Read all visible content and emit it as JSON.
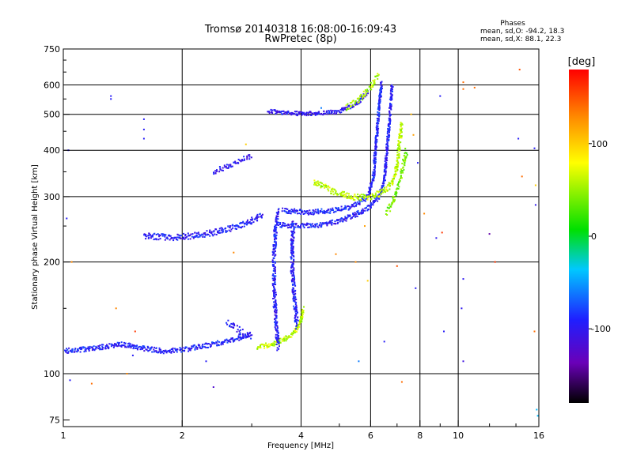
{
  "chart_data": {
    "type": "scatter",
    "title": "Tromsø 20140318 16:08:00-16:09:43",
    "subtitle": "RwPretec (8p)",
    "xlabel": "Frequency [MHz]",
    "ylabel": "Stationary phase Virtual Height [km]",
    "xscale": "log",
    "yscale": "log",
    "xlim": [
      1,
      16
    ],
    "ylim": [
      72,
      750
    ],
    "xticks": [
      {
        "value": 1,
        "label": "1"
      },
      {
        "value": 2,
        "label": "2"
      },
      {
        "value": 4,
        "label": "4"
      },
      {
        "value": 6,
        "label": "6"
      },
      {
        "value": 8,
        "label": "8"
      },
      {
        "value": 10,
        "label": "10"
      },
      {
        "value": 16,
        "label": "16"
      }
    ],
    "xgrid": [
      2,
      4,
      6,
      8,
      10
    ],
    "yticks": [
      {
        "value": 75,
        "label": "75"
      },
      {
        "value": 100,
        "label": "100"
      },
      {
        "value": 200,
        "label": "200"
      },
      {
        "value": 300,
        "label": "300"
      },
      {
        "value": 400,
        "label": "400"
      },
      {
        "value": 500,
        "label": "500"
      },
      {
        "value": 600,
        "label": "600"
      },
      {
        "value": 750,
        "label": "750"
      }
    ],
    "ygrid": [
      100,
      200,
      300,
      400,
      500,
      600
    ],
    "grid": true,
    "legend": {
      "title": "Phases",
      "lines": [
        "mean, sd,O: -94.2, 18.3",
        "mean, sd,X:  88.1, 22.3"
      ],
      "position": "top-right"
    },
    "colorbar": {
      "title": "[deg]",
      "range": [
        -180,
        180
      ],
      "ticks": [
        {
          "value": 100,
          "label": "100"
        },
        {
          "value": 0,
          "label": "0"
        },
        {
          "value": -100,
          "label": "-100"
        }
      ],
      "colors": [
        "#000000",
        "#6a00b8",
        "#1f1fff",
        "#00c8ff",
        "#00e000",
        "#ffff00",
        "#ff8800",
        "#ff0000"
      ]
    },
    "traces": [
      {
        "name": "",
        "phase": -92,
        "spread": 0.012,
        "density": 3,
        "points": [
          [
            1.0,
            115
          ],
          [
            1.2,
            117
          ],
          [
            1.4,
            120
          ],
          [
            1.6,
            117
          ],
          [
            1.8,
            115
          ],
          [
            2.0,
            116
          ],
          [
            2.2,
            118
          ],
          [
            2.5,
            121
          ],
          [
            2.8,
            125
          ],
          [
            3.0,
            128
          ]
        ]
      },
      {
        "name": "",
        "phase": -95,
        "spread": 0.02,
        "density": 2,
        "points": [
          [
            2.6,
            138
          ],
          [
            2.8,
            130
          ],
          [
            3.0,
            125
          ]
        ]
      },
      {
        "name": "",
        "phase": 60,
        "spread": 0.012,
        "density": 3,
        "points": [
          [
            3.1,
            118
          ],
          [
            3.4,
            120
          ],
          [
            3.7,
            125
          ],
          [
            3.9,
            132
          ],
          [
            4.0,
            140
          ],
          [
            4.05,
            150
          ]
        ]
      },
      {
        "name": "",
        "phase": -95,
        "spread": 0.015,
        "density": 3,
        "points": [
          [
            1.6,
            235
          ],
          [
            1.9,
            233
          ],
          [
            2.2,
            236
          ],
          [
            2.5,
            242
          ],
          [
            2.8,
            250
          ],
          [
            3.0,
            258
          ],
          [
            3.2,
            268
          ]
        ]
      },
      {
        "name": "",
        "phase": -95,
        "spread": 0.018,
        "density": 3,
        "points": [
          [
            3.5,
            118
          ],
          [
            3.45,
            140
          ],
          [
            3.42,
            170
          ],
          [
            3.42,
            210
          ],
          [
            3.45,
            250
          ],
          [
            3.5,
            275
          ]
        ]
      },
      {
        "name": "",
        "phase": -95,
        "spread": 0.018,
        "density": 3,
        "points": [
          [
            3.9,
            135
          ],
          [
            3.85,
            160
          ],
          [
            3.8,
            190
          ],
          [
            3.8,
            220
          ],
          [
            3.82,
            255
          ]
        ]
      },
      {
        "name": "",
        "phase": -95,
        "spread": 0.012,
        "density": 3,
        "points": [
          [
            3.5,
            252
          ],
          [
            4.0,
            250
          ],
          [
            4.5,
            252
          ],
          [
            5.0,
            258
          ],
          [
            5.5,
            268
          ],
          [
            6.0,
            283
          ],
          [
            6.3,
            300
          ],
          [
            6.5,
            330
          ],
          [
            6.6,
            400
          ],
          [
            6.7,
            480
          ],
          [
            6.8,
            600
          ]
        ]
      },
      {
        "name": "",
        "phase": -90,
        "spread": 0.012,
        "density": 3,
        "points": [
          [
            3.6,
            275
          ],
          [
            4.2,
            272
          ],
          [
            4.8,
            275
          ],
          [
            5.4,
            282
          ],
          [
            5.9,
            300
          ],
          [
            6.1,
            340
          ],
          [
            6.2,
            420
          ],
          [
            6.3,
            520
          ],
          [
            6.4,
            610
          ]
        ]
      },
      {
        "name": "",
        "phase": -100,
        "spread": 0.01,
        "density": 3,
        "points": [
          [
            3.3,
            510
          ],
          [
            3.6,
            505
          ],
          [
            4.0,
            502
          ],
          [
            4.5,
            503
          ],
          [
            5.0,
            510
          ],
          [
            5.5,
            530
          ],
          [
            5.9,
            575
          ]
        ]
      },
      {
        "name": "",
        "phase": -100,
        "spread": 0.014,
        "density": 2,
        "points": [
          [
            2.4,
            350
          ],
          [
            2.7,
            368
          ],
          [
            3.0,
            385
          ]
        ]
      },
      {
        "name": "",
        "phase": 60,
        "spread": 0.015,
        "density": 3,
        "points": [
          [
            4.3,
            330
          ],
          [
            4.8,
            310
          ],
          [
            5.3,
            300
          ],
          [
            5.8,
            298
          ],
          [
            6.3,
            305
          ],
          [
            6.8,
            325
          ],
          [
            7.0,
            360
          ],
          [
            7.1,
            420
          ],
          [
            7.2,
            470
          ]
        ]
      },
      {
        "name": "",
        "phase": 40,
        "spread": 0.016,
        "density": 2,
        "points": [
          [
            6.6,
            270
          ],
          [
            6.9,
            300
          ],
          [
            7.2,
            350
          ],
          [
            7.4,
            400
          ]
        ]
      },
      {
        "name": "",
        "phase": 55,
        "spread": 0.015,
        "density": 2,
        "points": [
          [
            5.2,
            520
          ],
          [
            5.6,
            545
          ],
          [
            6.0,
            590
          ],
          [
            6.3,
            640
          ]
        ]
      }
    ],
    "scatter_points": [
      {
        "x": 1.32,
        "y": 560,
        "phase": -95
      },
      {
        "x": 1.32,
        "y": 550,
        "phase": -95
      },
      {
        "x": 1.6,
        "y": 485,
        "phase": -95
      },
      {
        "x": 1.6,
        "y": 455,
        "phase": -95
      },
      {
        "x": 1.6,
        "y": 430,
        "phase": -95
      },
      {
        "x": 1.03,
        "y": 400,
        "phase": -95
      },
      {
        "x": 1.02,
        "y": 262,
        "phase": -95
      },
      {
        "x": 1.05,
        "y": 200,
        "phase": 130
      },
      {
        "x": 1.04,
        "y": 96,
        "phase": -95
      },
      {
        "x": 1.18,
        "y": 94,
        "phase": 140
      },
      {
        "x": 1.45,
        "y": 100,
        "phase": 130
      },
      {
        "x": 1.5,
        "y": 112,
        "phase": -95
      },
      {
        "x": 1.52,
        "y": 130,
        "phase": 160
      },
      {
        "x": 1.36,
        "y": 150,
        "phase": 130
      },
      {
        "x": 2.4,
        "y": 92,
        "phase": -120
      },
      {
        "x": 2.3,
        "y": 108,
        "phase": -95
      },
      {
        "x": 2.7,
        "y": 212,
        "phase": 130
      },
      {
        "x": 2.9,
        "y": 415,
        "phase": 100
      },
      {
        "x": 9.0,
        "y": 560,
        "phase": -95
      },
      {
        "x": 9.1,
        "y": 240,
        "phase": 160
      },
      {
        "x": 8.8,
        "y": 232,
        "phase": -100
      },
      {
        "x": 9.2,
        "y": 130,
        "phase": -95
      },
      {
        "x": 10.3,
        "y": 108,
        "phase": -110
      },
      {
        "x": 10.3,
        "y": 610,
        "phase": 140
      },
      {
        "x": 10.3,
        "y": 585,
        "phase": 140
      },
      {
        "x": 11.0,
        "y": 590,
        "phase": 140
      },
      {
        "x": 10.3,
        "y": 180,
        "phase": -100
      },
      {
        "x": 10.2,
        "y": 150,
        "phase": -100
      },
      {
        "x": 12.0,
        "y": 238,
        "phase": -140
      },
      {
        "x": 12.4,
        "y": 200,
        "phase": 160
      },
      {
        "x": 14.3,
        "y": 660,
        "phase": 150
      },
      {
        "x": 14.2,
        "y": 430,
        "phase": -95
      },
      {
        "x": 14.5,
        "y": 340,
        "phase": 140
      },
      {
        "x": 15.6,
        "y": 405,
        "phase": -95
      },
      {
        "x": 15.7,
        "y": 322,
        "phase": 100
      },
      {
        "x": 15.7,
        "y": 285,
        "phase": -100
      },
      {
        "x": 15.6,
        "y": 130,
        "phase": 140
      },
      {
        "x": 15.8,
        "y": 80,
        "phase": -40
      },
      {
        "x": 15.9,
        "y": 77,
        "phase": -40
      },
      {
        "x": 7.8,
        "y": 170,
        "phase": -95
      },
      {
        "x": 7.2,
        "y": 95,
        "phase": 140
      },
      {
        "x": 6.5,
        "y": 122,
        "phase": -95
      },
      {
        "x": 5.6,
        "y": 108,
        "phase": -60
      },
      {
        "x": 5.9,
        "y": 178,
        "phase": 100
      },
      {
        "x": 5.5,
        "y": 200,
        "phase": 130
      },
      {
        "x": 4.9,
        "y": 210,
        "phase": 130
      },
      {
        "x": 7.6,
        "y": 500,
        "phase": 110
      },
      {
        "x": 7.9,
        "y": 370,
        "phase": -95
      },
      {
        "x": 7.7,
        "y": 440,
        "phase": 120
      },
      {
        "x": 4.5,
        "y": 520,
        "phase": -60
      },
      {
        "x": 5.8,
        "y": 250,
        "phase": 120
      },
      {
        "x": 7.0,
        "y": 195,
        "phase": 150
      },
      {
        "x": 8.2,
        "y": 270,
        "phase": 130
      }
    ]
  }
}
